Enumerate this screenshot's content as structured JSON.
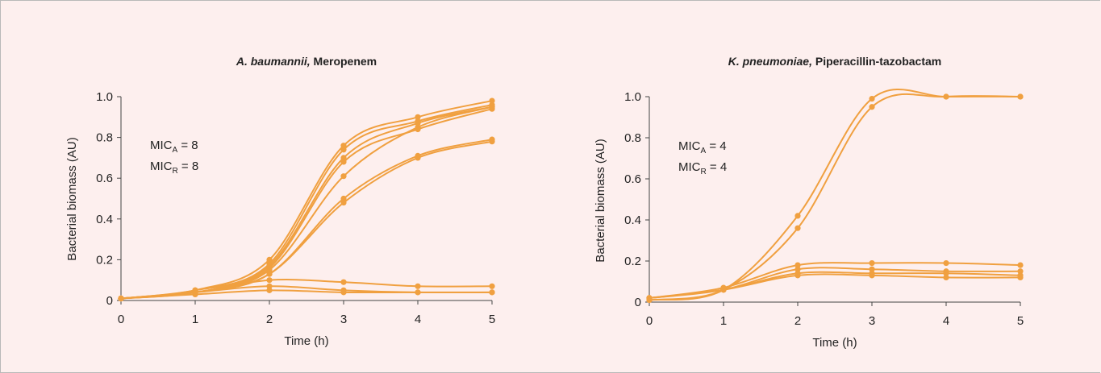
{
  "chart_data": [
    {
      "type": "line",
      "title_italic": "A. baumannii,",
      "title_rest": "Meropenem",
      "xlabel": "Time (h)",
      "ylabel": "Bacterial biomass (AU)",
      "xlim": [
        0,
        5
      ],
      "ylim": [
        0,
        1.0
      ],
      "xticks": [
        "0",
        "1",
        "2",
        "3",
        "4",
        "5"
      ],
      "yticks": [
        "0",
        "0.2",
        "0.4",
        "0.6",
        "0.8",
        "1.0"
      ],
      "grid": false,
      "line_color": "#f0a040",
      "annotation": {
        "line1_prefix": "MIC",
        "line1_sub": "A",
        "line1_suffix": " = 8",
        "line2_prefix": "MIC",
        "line2_sub": "R",
        "line2_suffix": " = 8"
      },
      "x": [
        0,
        1,
        2,
        3,
        4,
        5
      ],
      "series": [
        {
          "values": [
            0.01,
            0.05,
            0.2,
            0.76,
            0.9,
            0.98
          ]
        },
        {
          "values": [
            0.01,
            0.05,
            0.18,
            0.74,
            0.88,
            0.96
          ]
        },
        {
          "values": [
            0.01,
            0.05,
            0.17,
            0.7,
            0.87,
            0.95
          ]
        },
        {
          "values": [
            0.01,
            0.05,
            0.16,
            0.68,
            0.84,
            0.94
          ]
        },
        {
          "values": [
            0.01,
            0.04,
            0.15,
            0.61,
            0.85,
            0.95
          ]
        },
        {
          "values": [
            0.01,
            0.04,
            0.13,
            0.5,
            0.71,
            0.79
          ]
        },
        {
          "values": [
            0.01,
            0.04,
            0.13,
            0.48,
            0.7,
            0.78
          ]
        },
        {
          "values": [
            0.01,
            0.04,
            0.1,
            0.09,
            0.07,
            0.07
          ]
        },
        {
          "values": [
            0.01,
            0.04,
            0.07,
            0.05,
            0.04,
            0.04
          ]
        },
        {
          "values": [
            0.01,
            0.03,
            0.05,
            0.04,
            0.04,
            0.04
          ]
        }
      ]
    },
    {
      "type": "line",
      "title_italic": "K. pneumoniae,",
      "title_rest": "Piperacillin-tazobactam",
      "xlabel": "Time (h)",
      "ylabel": "Bacterial biomass (AU)",
      "xlim": [
        0,
        5
      ],
      "ylim": [
        0,
        1.0
      ],
      "xticks": [
        "0",
        "1",
        "2",
        "3",
        "4",
        "5"
      ],
      "yticks": [
        "0",
        "0.2",
        "0.4",
        "0.6",
        "0.8",
        "1.0"
      ],
      "grid": false,
      "line_color": "#f0a040",
      "annotation": {
        "line1_prefix": "MIC",
        "line1_sub": "A",
        "line1_suffix": " = 4",
        "line2_prefix": "MIC",
        "line2_sub": "R",
        "line2_suffix": " = 4"
      },
      "x": [
        0,
        1,
        2,
        3,
        4,
        5
      ],
      "series": [
        {
          "values": [
            0.01,
            0.06,
            0.42,
            0.99,
            1.0,
            1.0
          ]
        },
        {
          "values": [
            0.01,
            0.06,
            0.36,
            0.95,
            1.0,
            1.0
          ]
        },
        {
          "values": [
            0.02,
            0.07,
            0.18,
            0.19,
            0.19,
            0.18
          ]
        },
        {
          "values": [
            0.02,
            0.06,
            0.16,
            0.16,
            0.15,
            0.15
          ]
        },
        {
          "values": [
            0.02,
            0.06,
            0.14,
            0.14,
            0.14,
            0.13
          ]
        },
        {
          "values": [
            0.02,
            0.06,
            0.13,
            0.13,
            0.12,
            0.12
          ]
        }
      ]
    }
  ]
}
